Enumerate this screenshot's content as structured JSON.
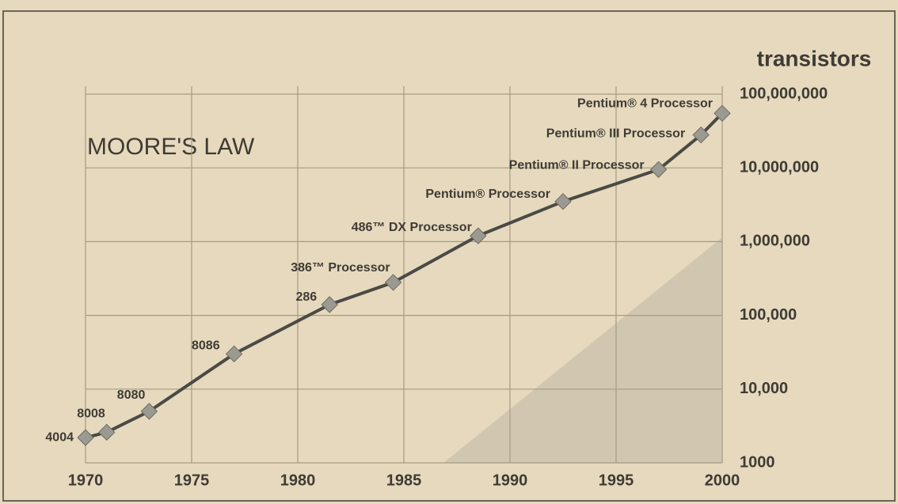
{
  "chart_data": {
    "type": "line",
    "title": "MOORE'S LAW",
    "y_label": "transistors",
    "x": [
      1970,
      1971,
      1973,
      1977,
      1981.5,
      1984.5,
      1988.5,
      1992.5,
      1997,
      1999,
      2000
    ],
    "values": [
      2200,
      2600,
      5000,
      30000,
      140000,
      280000,
      1200000,
      3500000,
      9500000,
      28000000,
      55000000
    ],
    "labels": [
      "4004",
      "8008",
      "8080",
      "8086",
      "286",
      "386™ Processor",
      "486™ DX Processor",
      "Pentium® Processor",
      "Pentium® II Processor",
      "Pentium® III Processor",
      "Pentium® 4 Processor"
    ],
    "color": "#4a4a46",
    "marker_color": "#9a9a92",
    "xlim": [
      1970,
      2000
    ],
    "xticks": [
      1970,
      1975,
      1980,
      1985,
      1990,
      1995,
      2000
    ],
    "ylim": [
      1000,
      100000000
    ],
    "yscale": "log",
    "yticks": [
      1000,
      {
        "value": 10000,
        "label": "10,000"
      },
      {
        "value": 100000,
        "label": "100,000"
      },
      {
        "value": 1000000,
        "label": "1,000,000"
      },
      {
        "value": 10000000,
        "label": "10,000,000"
      },
      {
        "value": 100000000,
        "label": "100,000,000"
      }
    ],
    "grid": true
  }
}
